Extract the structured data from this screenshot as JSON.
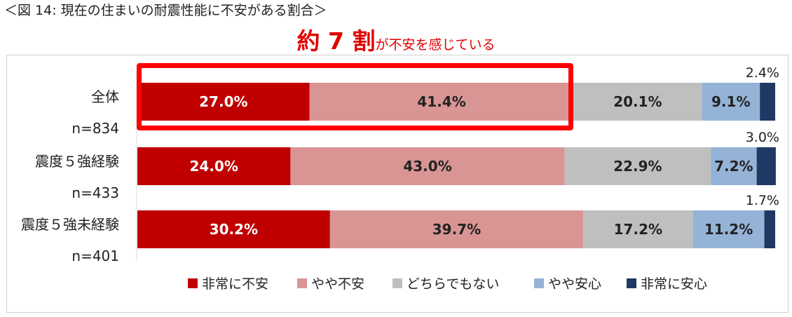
{
  "header": {
    "figure_title": "＜図 14:  現在の住まいの耐震性能に不安がある割合＞",
    "headline_emphasis": "約 7 割",
    "headline_rest": "が不安を感じている"
  },
  "colors": {
    "highlight": "#ff0000",
    "headline": "#e00000",
    "series": [
      "#c00000",
      "#d99594",
      "#bfbfbf",
      "#95b3d7",
      "#1f3864"
    ]
  },
  "chart_data": {
    "type": "bar",
    "orientation": "horizontal",
    "stacked": "100%",
    "categories": [
      "全体",
      "震度５強経験",
      "震度５強未経験"
    ],
    "n_labels": [
      "n=834",
      "n=433",
      "n=401"
    ],
    "series": [
      {
        "name": "非常に不安",
        "values": [
          27.0,
          24.0,
          30.2
        ],
        "labels": [
          "27.0%",
          "24.0%",
          "30.2%"
        ]
      },
      {
        "name": "やや不安",
        "values": [
          41.4,
          43.0,
          39.7
        ],
        "labels": [
          "41.4%",
          "43.0%",
          "39.7%"
        ]
      },
      {
        "name": "どちらでもない",
        "values": [
          20.1,
          22.9,
          17.2
        ],
        "labels": [
          "20.1%",
          "22.9%",
          "17.2%"
        ]
      },
      {
        "name": "やや安心",
        "values": [
          9.1,
          7.2,
          11.2
        ],
        "labels": [
          "9.1%",
          "7.2%",
          "11.2%"
        ]
      },
      {
        "name": "非常に安心",
        "values": [
          2.4,
          3.0,
          1.7
        ],
        "labels": [
          "2.4%",
          "3.0%",
          "1.7%"
        ]
      }
    ],
    "xlim": [
      0,
      100
    ],
    "grid": false,
    "legend_position": "bottom",
    "highlight": "全体: 非常に不安 + やや不安"
  }
}
